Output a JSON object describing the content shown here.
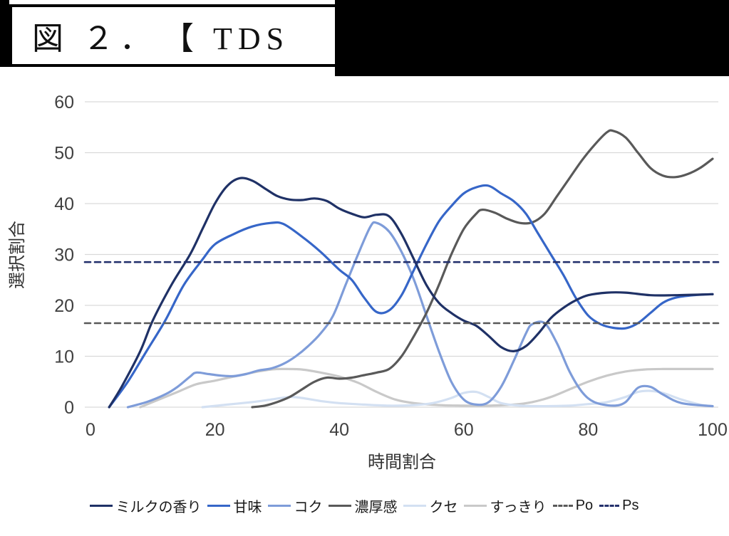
{
  "header": {
    "title": "図 ２．　【 TDS"
  },
  "chart_data": {
    "type": "line",
    "title": "",
    "xlabel": "時間割合",
    "ylabel": "選択割合",
    "xlim": [
      0,
      100
    ],
    "ylim": [
      0,
      60
    ],
    "x_ticks": [
      0,
      20,
      40,
      60,
      80,
      100
    ],
    "y_ticks": [
      0,
      10,
      20,
      30,
      40,
      50,
      60
    ],
    "grid": "horizontal",
    "gridline_color": "#d9d9d9",
    "tick_color": "#404040",
    "legend_position": "bottom",
    "series": [
      {
        "name": "すっきり",
        "color": "#c9c9c9",
        "dash": false,
        "points": [
          [
            8,
            0
          ],
          [
            11,
            1.5
          ],
          [
            14,
            3
          ],
          [
            17,
            4.5
          ],
          [
            20,
            5.2
          ],
          [
            23,
            6
          ],
          [
            26,
            6.8
          ],
          [
            29,
            7.4
          ],
          [
            31,
            7.5
          ],
          [
            34,
            7.4
          ],
          [
            37,
            6.8
          ],
          [
            40,
            6
          ],
          [
            43,
            4.8
          ],
          [
            46,
            3
          ],
          [
            49,
            1.5
          ],
          [
            52,
            0.8
          ],
          [
            56,
            0.4
          ],
          [
            60,
            0.3
          ],
          [
            64,
            0.3
          ],
          [
            68,
            0.5
          ],
          [
            71,
            1
          ],
          [
            74,
            2
          ],
          [
            77,
            3.5
          ],
          [
            80,
            5
          ],
          [
            83,
            6.2
          ],
          [
            86,
            7
          ],
          [
            89,
            7.4
          ],
          [
            92,
            7.5
          ],
          [
            96,
            7.5
          ],
          [
            100,
            7.5
          ]
        ]
      },
      {
        "name": "クセ",
        "color": "#d3e0f2",
        "dash": false,
        "points": [
          [
            18,
            0
          ],
          [
            22,
            0.5
          ],
          [
            26,
            1
          ],
          [
            29,
            1.5
          ],
          [
            32,
            2
          ],
          [
            34,
            1.8
          ],
          [
            37,
            1.2
          ],
          [
            40,
            0.8
          ],
          [
            44,
            0.5
          ],
          [
            48,
            0.3
          ],
          [
            52,
            0.4
          ],
          [
            55,
            0.8
          ],
          [
            58,
            1.8
          ],
          [
            60,
            2.8
          ],
          [
            62,
            3
          ],
          [
            64,
            2
          ],
          [
            66,
            0.8
          ],
          [
            69,
            0.3
          ],
          [
            73,
            0.2
          ],
          [
            77,
            0.3
          ],
          [
            80,
            0.6
          ],
          [
            83,
            1
          ],
          [
            86,
            2
          ],
          [
            88,
            3
          ],
          [
            90,
            3.2
          ],
          [
            92,
            2.8
          ],
          [
            95,
            1.5
          ],
          [
            98,
            0.5
          ],
          [
            100,
            0.2
          ]
        ]
      },
      {
        "name": "コク",
        "color": "#7e9cd9",
        "dash": false,
        "points": [
          [
            6,
            0
          ],
          [
            9,
            1
          ],
          [
            12,
            2.5
          ],
          [
            14,
            4
          ],
          [
            16,
            6
          ],
          [
            17,
            6.8
          ],
          [
            19,
            6.5
          ],
          [
            21,
            6.2
          ],
          [
            23,
            6.1
          ],
          [
            25,
            6.5
          ],
          [
            27,
            7.2
          ],
          [
            29,
            7.6
          ],
          [
            31,
            8.5
          ],
          [
            33,
            10
          ],
          [
            35,
            12
          ],
          [
            37,
            14.5
          ],
          [
            39,
            18
          ],
          [
            41,
            24
          ],
          [
            43,
            30
          ],
          [
            45,
            35.5
          ],
          [
            46,
            36.2
          ],
          [
            48,
            34.5
          ],
          [
            50,
            30.5
          ],
          [
            52,
            25
          ],
          [
            54,
            18
          ],
          [
            56,
            11
          ],
          [
            58,
            5
          ],
          [
            60,
            1.5
          ],
          [
            62,
            0.5
          ],
          [
            64,
            1
          ],
          [
            66,
            4
          ],
          [
            68,
            9
          ],
          [
            70,
            14.5
          ],
          [
            71,
            16.3
          ],
          [
            73,
            16.5
          ],
          [
            75,
            12.5
          ],
          [
            77,
            7
          ],
          [
            79,
            3
          ],
          [
            81,
            1
          ],
          [
            84,
            0.3
          ],
          [
            86,
            1
          ],
          [
            88,
            3.8
          ],
          [
            90,
            4
          ],
          [
            92,
            2.5
          ],
          [
            95,
            0.8
          ],
          [
            100,
            0.2
          ]
        ]
      },
      {
        "name": "濃厚感",
        "color": "#595959",
        "dash": false,
        "points": [
          [
            26,
            0
          ],
          [
            28,
            0.3
          ],
          [
            30,
            1
          ],
          [
            32,
            2
          ],
          [
            34,
            3.5
          ],
          [
            36,
            5
          ],
          [
            38,
            5.8
          ],
          [
            40,
            5.6
          ],
          [
            42,
            5.8
          ],
          [
            44,
            6.3
          ],
          [
            46,
            6.8
          ],
          [
            48,
            7.5
          ],
          [
            50,
            10
          ],
          [
            52,
            14
          ],
          [
            54,
            18.5
          ],
          [
            56,
            24
          ],
          [
            58,
            30
          ],
          [
            60,
            35
          ],
          [
            62,
            38
          ],
          [
            63,
            38.8
          ],
          [
            65,
            38.2
          ],
          [
            67,
            37
          ],
          [
            69,
            36.2
          ],
          [
            71,
            36.3
          ],
          [
            73,
            38
          ],
          [
            75,
            41.5
          ],
          [
            77,
            45
          ],
          [
            79,
            48.5
          ],
          [
            81,
            51.5
          ],
          [
            83,
            54
          ],
          [
            84,
            54.3
          ],
          [
            86,
            53
          ],
          [
            88,
            50
          ],
          [
            90,
            47
          ],
          [
            92,
            45.5
          ],
          [
            94,
            45.2
          ],
          [
            96,
            45.8
          ],
          [
            98,
            47
          ],
          [
            100,
            48.8
          ]
        ]
      },
      {
        "name": "甘味",
        "color": "#3666c8",
        "dash": false,
        "points": [
          [
            3,
            0
          ],
          [
            6,
            5
          ],
          [
            9,
            11
          ],
          [
            12,
            17
          ],
          [
            15,
            24
          ],
          [
            18,
            29
          ],
          [
            20,
            32
          ],
          [
            23,
            34
          ],
          [
            26,
            35.5
          ],
          [
            29,
            36.2
          ],
          [
            31,
            36
          ],
          [
            34,
            33.5
          ],
          [
            37,
            30.5
          ],
          [
            40,
            27
          ],
          [
            42,
            25
          ],
          [
            44,
            21.5
          ],
          [
            46,
            18.7
          ],
          [
            48,
            19
          ],
          [
            50,
            22
          ],
          [
            52,
            27
          ],
          [
            54,
            32
          ],
          [
            56,
            36.5
          ],
          [
            58,
            39.5
          ],
          [
            60,
            42
          ],
          [
            62,
            43.2
          ],
          [
            64,
            43.5
          ],
          [
            66,
            42
          ],
          [
            68,
            40.5
          ],
          [
            70,
            38
          ],
          [
            72,
            34
          ],
          [
            74,
            30
          ],
          [
            76,
            26
          ],
          [
            78,
            21.5
          ],
          [
            80,
            18
          ],
          [
            82,
            16.3
          ],
          [
            84,
            15.6
          ],
          [
            86,
            15.5
          ],
          [
            88,
            16.5
          ],
          [
            90,
            18.5
          ],
          [
            92,
            20.5
          ],
          [
            94,
            21.5
          ],
          [
            97,
            22
          ],
          [
            100,
            22.2
          ]
        ]
      },
      {
        "name": "ミルクの香り",
        "color": "#1f3166",
        "dash": false,
        "points": [
          [
            3,
            0
          ],
          [
            5,
            4
          ],
          [
            8,
            11
          ],
          [
            10,
            17
          ],
          [
            13,
            24
          ],
          [
            16,
            30
          ],
          [
            18,
            35
          ],
          [
            20,
            40
          ],
          [
            22,
            43.5
          ],
          [
            24,
            45
          ],
          [
            26,
            44.5
          ],
          [
            28,
            43
          ],
          [
            30,
            41.5
          ],
          [
            32,
            40.8
          ],
          [
            34,
            40.7
          ],
          [
            36,
            41
          ],
          [
            38,
            40.5
          ],
          [
            40,
            39
          ],
          [
            42,
            38
          ],
          [
            44,
            37.3
          ],
          [
            46,
            37.8
          ],
          [
            48,
            37.5
          ],
          [
            50,
            34
          ],
          [
            52,
            29
          ],
          [
            54,
            24
          ],
          [
            56,
            20.5
          ],
          [
            58,
            18.5
          ],
          [
            60,
            17
          ],
          [
            62,
            16
          ],
          [
            64,
            14
          ],
          [
            66,
            11.8
          ],
          [
            68,
            11
          ],
          [
            70,
            12
          ],
          [
            72,
            14.5
          ],
          [
            74,
            17.5
          ],
          [
            76,
            19.5
          ],
          [
            78,
            21
          ],
          [
            80,
            22
          ],
          [
            83,
            22.5
          ],
          [
            86,
            22.5
          ],
          [
            90,
            22
          ],
          [
            94,
            22
          ],
          [
            100,
            22.2
          ]
        ]
      },
      {
        "name": "Po",
        "color": "#595959",
        "dash": true,
        "points": [
          [
            0,
            16.5
          ],
          [
            100,
            16.5
          ]
        ]
      },
      {
        "name": "Ps",
        "color": "#24316d",
        "dash": true,
        "points": [
          [
            0,
            28.5
          ],
          [
            100,
            28.5
          ]
        ]
      }
    ],
    "legend_order": [
      "ミルクの香り",
      "甘味",
      "コク",
      "濃厚感",
      "クセ",
      "すっきり",
      "Po",
      "Ps"
    ]
  }
}
